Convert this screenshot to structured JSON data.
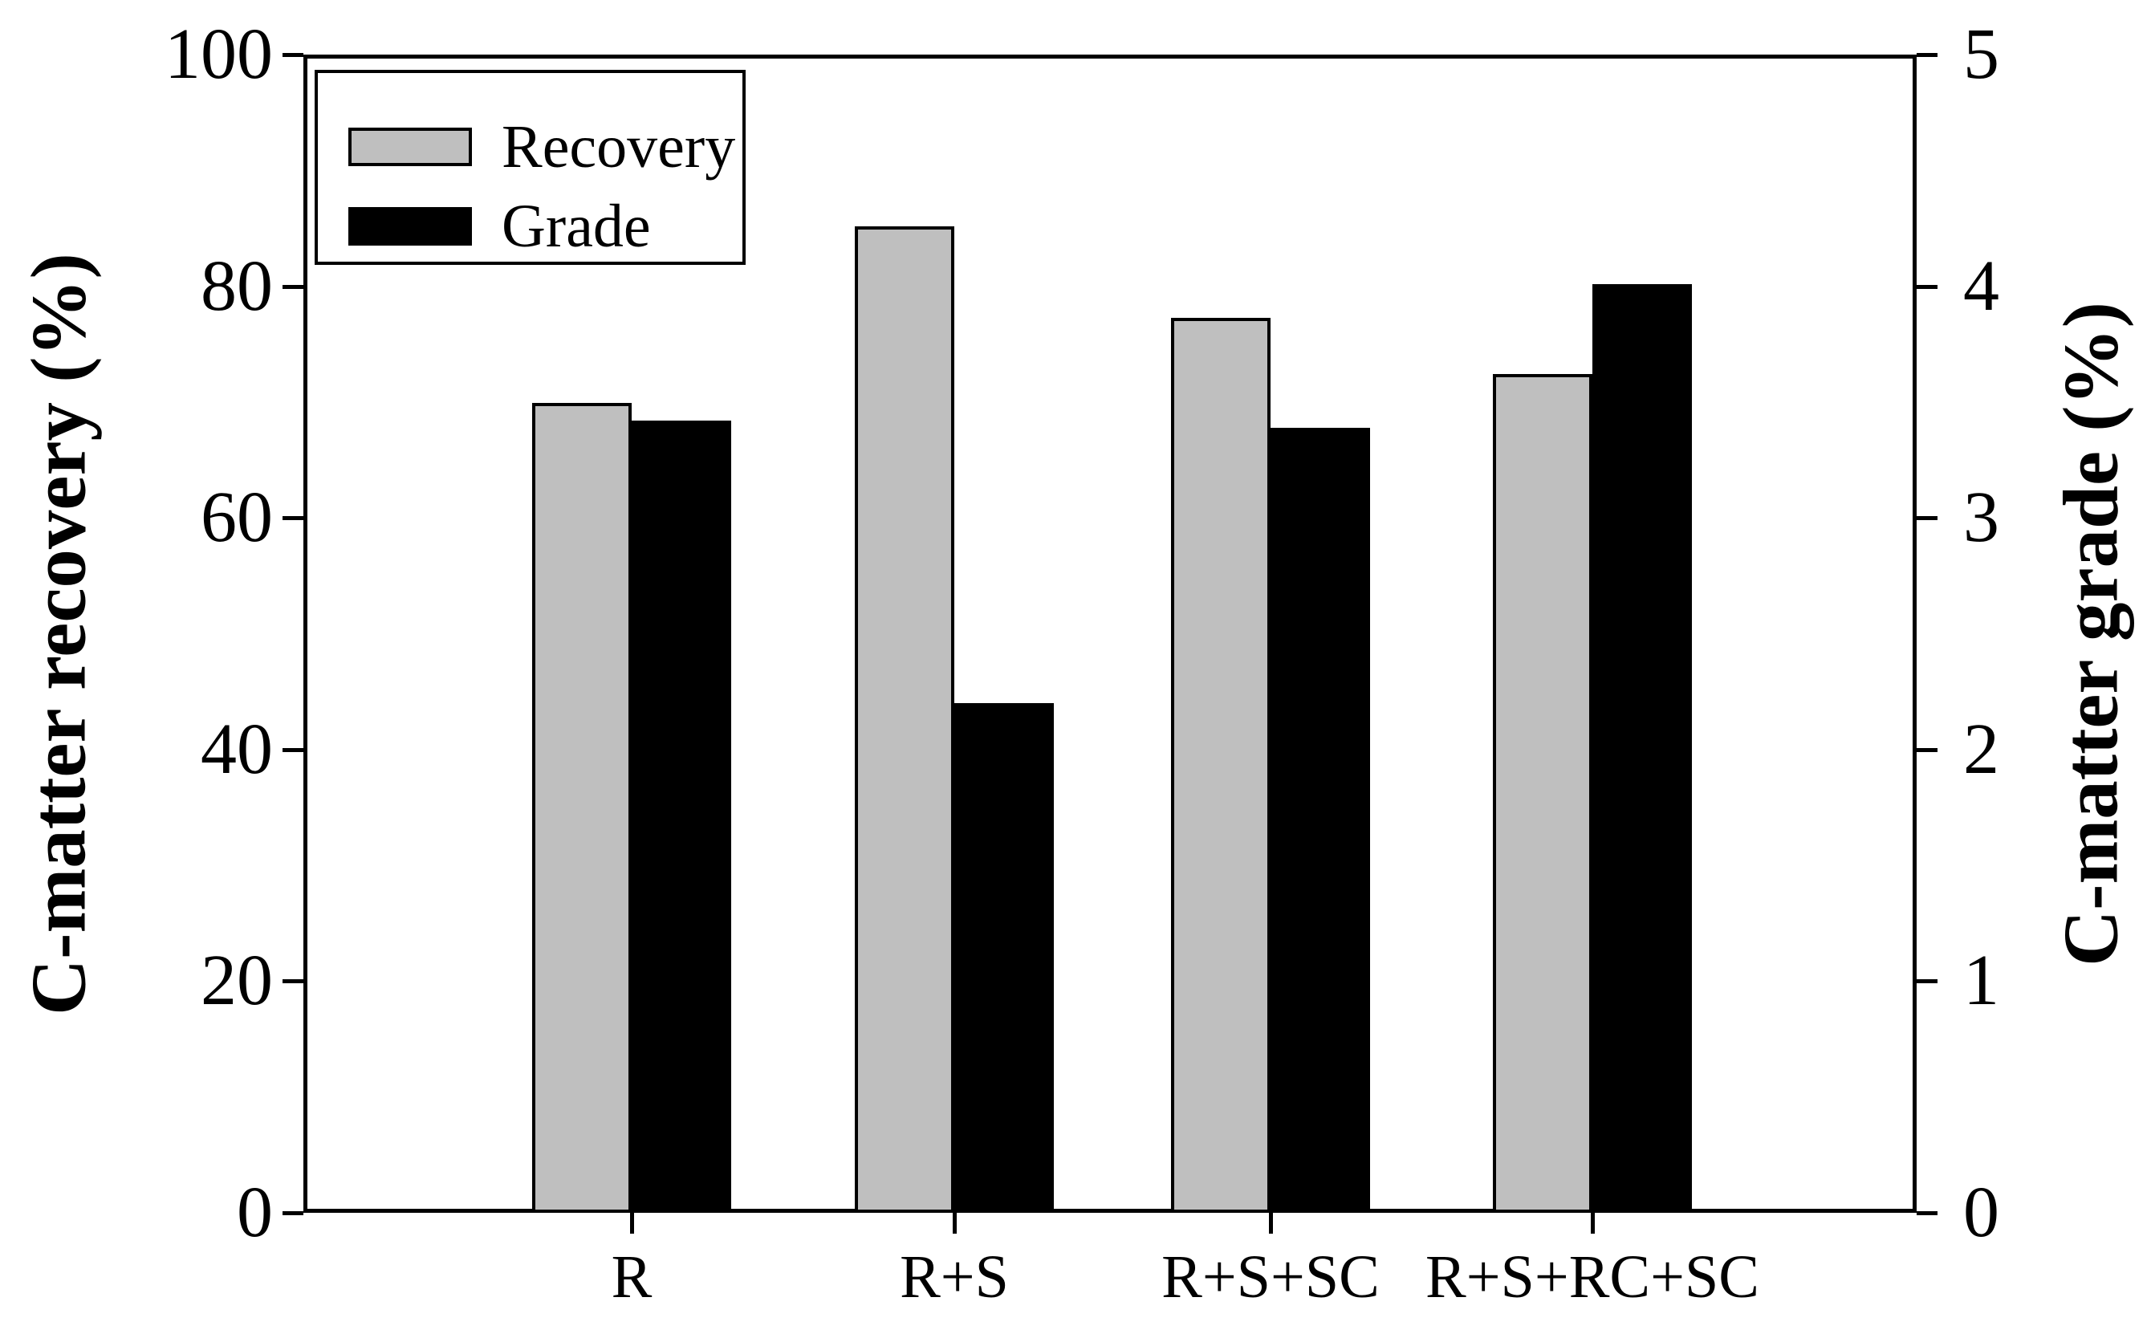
{
  "chart_data": {
    "type": "bar",
    "title": "",
    "categories": [
      "R",
      "R+S",
      "R+S+SC",
      "R+S+RC+SC"
    ],
    "series": [
      {
        "name": "Recovery",
        "axis": "left",
        "color": "#BFBFBF",
        "values": [
          69.9,
          85.2,
          77.3,
          72.4
        ]
      },
      {
        "name": "Grade",
        "axis": "right",
        "color": "#000000",
        "values": [
          3.42,
          2.2,
          3.39,
          4.01
        ]
      }
    ],
    "left_axis": {
      "label": "C-matter recovery (%)",
      "min": 0,
      "max": 100,
      "ticks": [
        "100",
        "80",
        "60",
        "40",
        "20",
        "0"
      ]
    },
    "right_axis": {
      "label": "C-matter grade (%)",
      "min": 0,
      "max": 5,
      "ticks": [
        "5",
        "4",
        "3",
        "2",
        "1",
        "0"
      ]
    },
    "legend": {
      "position": "top-left",
      "entries": [
        "Recovery",
        "Grade"
      ]
    },
    "grid": false,
    "bar_outline_color": "#000000",
    "background_color": "#FFFFFF"
  }
}
